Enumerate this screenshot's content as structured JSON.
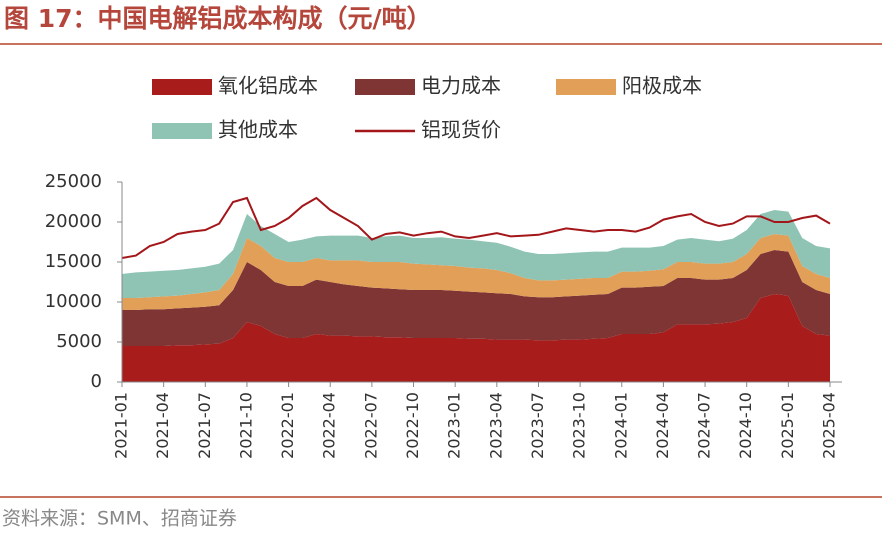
{
  "chart_data": {
    "type": "stacked_area_line",
    "title": "图 17：中国电解铝成本构成（元/吨）",
    "source": "资料来源：SMM、招商证券",
    "categories": [
      "2021-01",
      null,
      null,
      "2021-04",
      null,
      null,
      "2021-07",
      null,
      null,
      "2021-10",
      null,
      null,
      "2022-01",
      null,
      null,
      "2022-04",
      null,
      null,
      "2022-07",
      null,
      null,
      "2022-10",
      null,
      null,
      "2023-01",
      null,
      null,
      "2023-04",
      null,
      null,
      "2023-07",
      null,
      null,
      "2023-10",
      null,
      null,
      "2024-01",
      null,
      null,
      "2024-04",
      null,
      null,
      "2024-07",
      null,
      null,
      "2024-10",
      null,
      null,
      "2025-01",
      null,
      null,
      "2025-04"
    ],
    "series": [
      {
        "name": "氧化铝成本",
        "color": "#a81c1c",
        "kind": "area",
        "values": [
          4500,
          4500,
          4500,
          4500,
          4600,
          4600,
          4700,
          4800,
          5500,
          7500,
          7000,
          6000,
          5500,
          5500,
          6000,
          5800,
          5800,
          5700,
          5700,
          5600,
          5600,
          5500,
          5500,
          5500,
          5500,
          5400,
          5400,
          5300,
          5300,
          5300,
          5200,
          5200,
          5300,
          5300,
          5400,
          5500,
          6000,
          6000,
          6000,
          6200,
          7200,
          7200,
          7200,
          7300,
          7500,
          8000,
          10500,
          11000,
          10800,
          7000,
          6000,
          5800
        ]
      },
      {
        "name": "电力成本",
        "color": "#7e3534",
        "kind": "area",
        "values": [
          4500,
          4500,
          4600,
          4600,
          4600,
          4700,
          4700,
          4800,
          6000,
          7500,
          7000,
          6500,
          6500,
          6500,
          6800,
          6700,
          6400,
          6300,
          6100,
          6100,
          6000,
          6000,
          6000,
          6000,
          5900,
          5900,
          5800,
          5800,
          5700,
          5400,
          5400,
          5400,
          5400,
          5500,
          5500,
          5500,
          5800,
          5800,
          5900,
          5800,
          5800,
          5800,
          5600,
          5500,
          5500,
          6000,
          5500,
          5500,
          5500,
          5500,
          5500,
          5200
        ]
      },
      {
        "name": "阳极成本",
        "color": "#e19f57",
        "kind": "area",
        "values": [
          1500,
          1500,
          1500,
          1600,
          1600,
          1700,
          1800,
          1900,
          2000,
          3000,
          3000,
          3000,
          3000,
          3000,
          2700,
          2700,
          3000,
          3200,
          3200,
          3300,
          3400,
          3300,
          3200,
          3100,
          3100,
          3000,
          3000,
          2900,
          2600,
          2300,
          2100,
          2100,
          2100,
          2100,
          2100,
          2000,
          2000,
          2000,
          2000,
          2100,
          2000,
          2000,
          2000,
          2000,
          2000,
          2000,
          2000,
          2000,
          2000,
          2000,
          2000,
          2000
        ]
      },
      {
        "name": "其他成本",
        "color": "#8fc4b5",
        "kind": "area",
        "values": [
          3000,
          3200,
          3200,
          3200,
          3200,
          3200,
          3200,
          3300,
          3000,
          3000,
          2500,
          3000,
          2500,
          2800,
          2700,
          3100,
          3100,
          3100,
          3000,
          3200,
          3300,
          3200,
          3300,
          3500,
          3400,
          3500,
          3400,
          3400,
          3300,
          3300,
          3300,
          3300,
          3300,
          3300,
          3300,
          3300,
          3000,
          3000,
          2900,
          2900,
          2800,
          3000,
          3000,
          2800,
          2900,
          3000,
          3000,
          3000,
          3000,
          3500,
          3500,
          3700
        ]
      },
      {
        "name": "铝现货价",
        "color": "#a3161a",
        "kind": "line",
        "values": [
          15500,
          15800,
          17000,
          17500,
          18500,
          18800,
          19000,
          19800,
          22500,
          23000,
          19000,
          19500,
          20500,
          22000,
          23000,
          21500,
          20500,
          19500,
          17800,
          18500,
          18700,
          18300,
          18600,
          18800,
          18200,
          18000,
          18300,
          18600,
          18200,
          18300,
          18400,
          18800,
          19200,
          19000,
          18800,
          19000,
          19000,
          18800,
          19300,
          20300,
          20700,
          21000,
          20000,
          19500,
          19800,
          20700,
          20700,
          20000,
          20000,
          20500,
          20800,
          19800
        ]
      }
    ],
    "ylim": [
      0,
      25000
    ],
    "yticks": [
      0,
      5000,
      10000,
      15000,
      20000,
      25000
    ]
  }
}
